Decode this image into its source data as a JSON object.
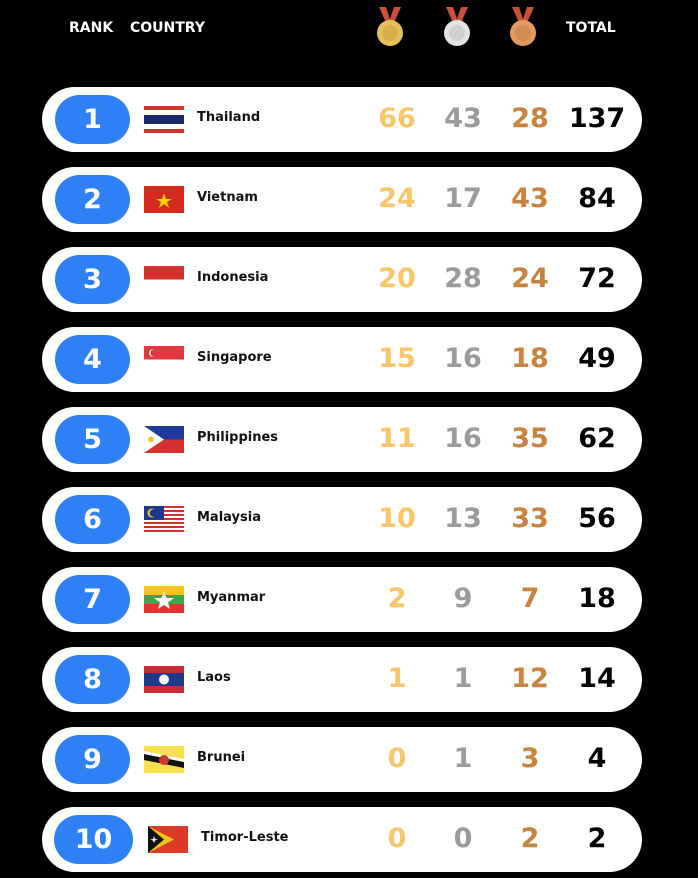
{
  "header": {
    "rank": "RANK",
    "country": "COUNTRY",
    "total": "TOTAL",
    "medal_icons": [
      "gold-medal-icon",
      "silver-medal-icon",
      "bronze-medal-icon"
    ]
  },
  "colors": {
    "rank_pill": "#2f80f5",
    "gold": "#f7c66b",
    "silver": "#9b9b9b",
    "bronze": "#c8843e"
  },
  "rows": [
    {
      "rank": "1",
      "country": "Thailand",
      "gold": "66",
      "silver": "43",
      "bronze": "28",
      "total": "137"
    },
    {
      "rank": "2",
      "country": "Vietnam",
      "gold": "24",
      "silver": "17",
      "bronze": "43",
      "total": "84"
    },
    {
      "rank": "3",
      "country": "Indonesia",
      "gold": "20",
      "silver": "28",
      "bronze": "24",
      "total": "72"
    },
    {
      "rank": "4",
      "country": "Singapore",
      "gold": "15",
      "silver": "16",
      "bronze": "18",
      "total": "49"
    },
    {
      "rank": "5",
      "country": "Philippines",
      "gold": "11",
      "silver": "16",
      "bronze": "35",
      "total": "62"
    },
    {
      "rank": "6",
      "country": "Malaysia",
      "gold": "10",
      "silver": "13",
      "bronze": "33",
      "total": "56"
    },
    {
      "rank": "7",
      "country": "Myanmar",
      "gold": "2",
      "silver": "9",
      "bronze": "7",
      "total": "18"
    },
    {
      "rank": "8",
      "country": "Laos",
      "gold": "1",
      "silver": "1",
      "bronze": "12",
      "total": "14"
    },
    {
      "rank": "9",
      "country": "Brunei",
      "gold": "0",
      "silver": "1",
      "bronze": "3",
      "total": "4"
    },
    {
      "rank": "10",
      "country": "Timor-Leste",
      "gold": "0",
      "silver": "0",
      "bronze": "2",
      "total": "2"
    }
  ]
}
